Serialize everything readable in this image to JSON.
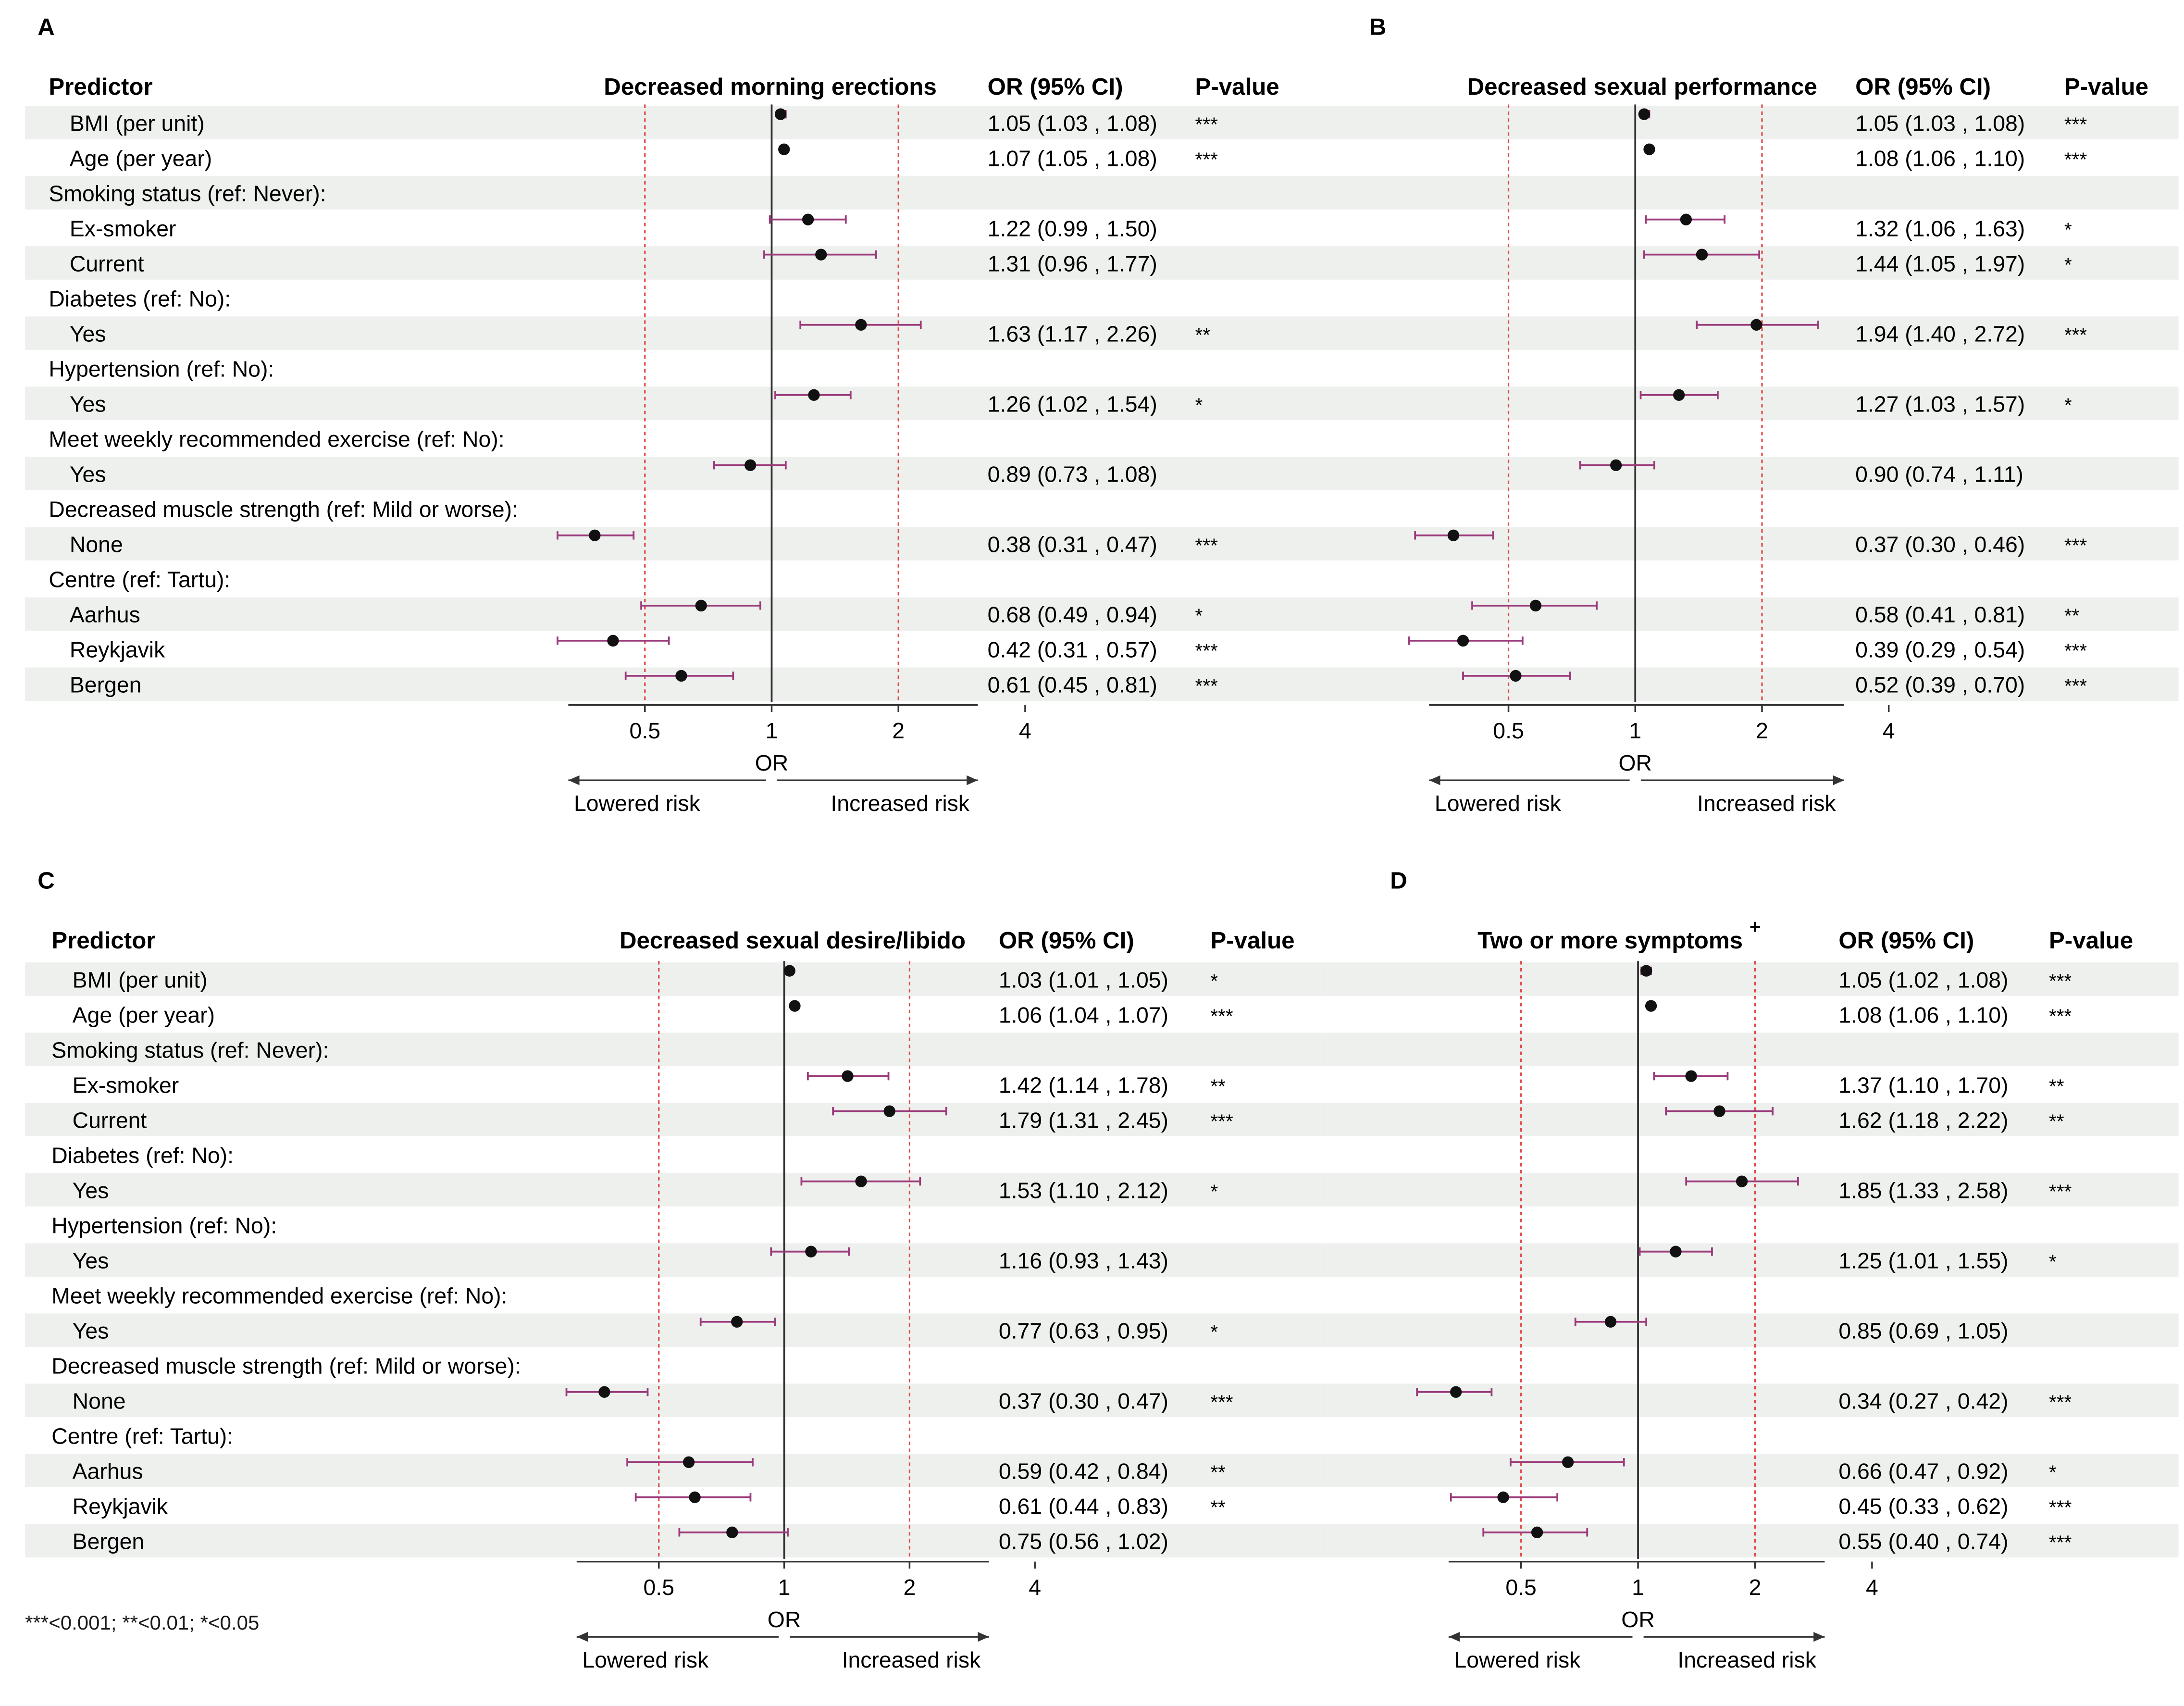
{
  "columns": {
    "predictor": "Predictor",
    "or_ci": "OR (95% CI)",
    "p_value": "P-value"
  },
  "predictors": [
    "BMI (per unit)",
    "Age (per year)",
    "Smoking status (ref: Never):",
    "Ex-smoker",
    "Current",
    "Diabetes (ref: No):",
    "Yes",
    "Hypertension (ref: No):",
    "Yes",
    "Meet weekly recommended exercise (ref: No):",
    "Yes",
    "Decreased muscle strength (ref: Mild or worse):",
    "None",
    "Centre (ref: Tartu):",
    "Aarhus",
    "Reykjavik",
    "Bergen"
  ],
  "axis": {
    "ticks": [
      0.5,
      1,
      2,
      4
    ],
    "tick_labels": [
      "0.5",
      "1",
      "2",
      "4"
    ],
    "label": "OR",
    "left_label": "Lowered risk",
    "right_label": "Increased risk",
    "reference_lines": [
      0.5,
      2
    ]
  },
  "colors": {
    "ci": "#9a3a7a",
    "ref_line": "#e04848",
    "dot": "#111111",
    "row_band": "#eef0ee"
  },
  "footnote": "***<0.001; **<0.01; *<0.05",
  "chart_data": [
    {
      "panel": "A",
      "type": "forest",
      "title": "Decreased morning erections",
      "xscale": "log2",
      "rows": [
        {
          "label": "BMI (per unit)",
          "or": 1.05,
          "lo": 1.03,
          "hi": 1.08,
          "ci_text": "1.05 (1.03 , 1.08)",
          "p": "***"
        },
        {
          "label": "Age (per year)",
          "or": 1.07,
          "lo": 1.05,
          "hi": 1.08,
          "ci_text": "1.07 (1.05 , 1.08)",
          "p": "***"
        },
        {
          "label": "Smoking status (ref: Never):"
        },
        {
          "label": "Ex-smoker",
          "or": 1.22,
          "lo": 0.99,
          "hi": 1.5,
          "ci_text": "1.22 (0.99 , 1.50)",
          "p": ""
        },
        {
          "label": "Current",
          "or": 1.31,
          "lo": 0.96,
          "hi": 1.77,
          "ci_text": "1.31 (0.96 , 1.77)",
          "p": ""
        },
        {
          "label": "Diabetes (ref: No):"
        },
        {
          "label": "Yes",
          "or": 1.63,
          "lo": 1.17,
          "hi": 2.26,
          "ci_text": "1.63 (1.17 , 2.26)",
          "p": "**"
        },
        {
          "label": "Hypertension (ref: No):"
        },
        {
          "label": "Yes",
          "or": 1.26,
          "lo": 1.02,
          "hi": 1.54,
          "ci_text": "1.26 (1.02 , 1.54)",
          "p": "*"
        },
        {
          "label": "Meet weekly recommended exercise (ref: No):"
        },
        {
          "label": "Yes",
          "or": 0.89,
          "lo": 0.73,
          "hi": 1.08,
          "ci_text": "0.89 (0.73 , 1.08)",
          "p": ""
        },
        {
          "label": "Decreased muscle strength (ref: Mild or worse):"
        },
        {
          "label": "None",
          "or": 0.38,
          "lo": 0.31,
          "hi": 0.47,
          "ci_text": "0.38 (0.31 , 0.47)",
          "p": "***"
        },
        {
          "label": "Centre (ref: Tartu):"
        },
        {
          "label": "Aarhus",
          "or": 0.68,
          "lo": 0.49,
          "hi": 0.94,
          "ci_text": "0.68 (0.49 , 0.94)",
          "p": "*"
        },
        {
          "label": "Reykjavik",
          "or": 0.42,
          "lo": 0.31,
          "hi": 0.57,
          "ci_text": "0.42 (0.31 , 0.57)",
          "p": "***"
        },
        {
          "label": "Bergen",
          "or": 0.61,
          "lo": 0.45,
          "hi": 0.81,
          "ci_text": "0.61 (0.45 , 0.81)",
          "p": "***"
        }
      ]
    },
    {
      "panel": "B",
      "type": "forest",
      "title": "Decreased sexual performance",
      "xscale": "log2",
      "rows": [
        {
          "label": "BMI (per unit)",
          "or": 1.05,
          "lo": 1.03,
          "hi": 1.08,
          "ci_text": "1.05 (1.03 , 1.08)",
          "p": "***"
        },
        {
          "label": "Age (per year)",
          "or": 1.08,
          "lo": 1.06,
          "hi": 1.1,
          "ci_text": "1.08 (1.06 , 1.10)",
          "p": "***"
        },
        {
          "label": "Smoking status (ref: Never):"
        },
        {
          "label": "Ex-smoker",
          "or": 1.32,
          "lo": 1.06,
          "hi": 1.63,
          "ci_text": "1.32 (1.06 , 1.63)",
          "p": "*"
        },
        {
          "label": "Current",
          "or": 1.44,
          "lo": 1.05,
          "hi": 1.97,
          "ci_text": "1.44 (1.05 , 1.97)",
          "p": "*"
        },
        {
          "label": "Diabetes (ref: No):"
        },
        {
          "label": "Yes",
          "or": 1.94,
          "lo": 1.4,
          "hi": 2.72,
          "ci_text": "1.94 (1.40 , 2.72)",
          "p": "***"
        },
        {
          "label": "Hypertension (ref: No):"
        },
        {
          "label": "Yes",
          "or": 1.27,
          "lo": 1.03,
          "hi": 1.57,
          "ci_text": "1.27 (1.03 , 1.57)",
          "p": "*"
        },
        {
          "label": "Meet weekly recommended exercise (ref: No):"
        },
        {
          "label": "Yes",
          "or": 0.9,
          "lo": 0.74,
          "hi": 1.11,
          "ci_text": "0.90 (0.74 , 1.11)",
          "p": ""
        },
        {
          "label": "Decreased muscle strength (ref: Mild or worse):"
        },
        {
          "label": "None",
          "or": 0.37,
          "lo": 0.3,
          "hi": 0.46,
          "ci_text": "0.37 (0.30 , 0.46)",
          "p": "***"
        },
        {
          "label": "Centre (ref: Tartu):"
        },
        {
          "label": "Aarhus",
          "or": 0.58,
          "lo": 0.41,
          "hi": 0.81,
          "ci_text": "0.58 (0.41 , 0.81)",
          "p": "**"
        },
        {
          "label": "Reykjavik",
          "or": 0.39,
          "lo": 0.29,
          "hi": 0.54,
          "ci_text": "0.39 (0.29 , 0.54)",
          "p": "***"
        },
        {
          "label": "Bergen",
          "or": 0.52,
          "lo": 0.39,
          "hi": 0.7,
          "ci_text": "0.52 (0.39 , 0.70)",
          "p": "***"
        }
      ]
    },
    {
      "panel": "C",
      "type": "forest",
      "title": "Decreased sexual desire/libido",
      "xscale": "log2",
      "rows": [
        {
          "label": "BMI (per unit)",
          "or": 1.03,
          "lo": 1.01,
          "hi": 1.05,
          "ci_text": "1.03 (1.01 , 1.05)",
          "p": "*"
        },
        {
          "label": "Age (per year)",
          "or": 1.06,
          "lo": 1.04,
          "hi": 1.07,
          "ci_text": "1.06 (1.04 , 1.07)",
          "p": "***"
        },
        {
          "label": "Smoking status (ref: Never):"
        },
        {
          "label": "Ex-smoker",
          "or": 1.42,
          "lo": 1.14,
          "hi": 1.78,
          "ci_text": "1.42 (1.14 , 1.78)",
          "p": "**"
        },
        {
          "label": "Current",
          "or": 1.79,
          "lo": 1.31,
          "hi": 2.45,
          "ci_text": "1.79 (1.31 , 2.45)",
          "p": "***"
        },
        {
          "label": "Diabetes (ref: No):"
        },
        {
          "label": "Yes",
          "or": 1.53,
          "lo": 1.1,
          "hi": 2.12,
          "ci_text": "1.53 (1.10 , 2.12)",
          "p": "*"
        },
        {
          "label": "Hypertension (ref: No):"
        },
        {
          "label": "Yes",
          "or": 1.16,
          "lo": 0.93,
          "hi": 1.43,
          "ci_text": "1.16 (0.93 , 1.43)",
          "p": ""
        },
        {
          "label": "Meet weekly recommended exercise (ref: No):"
        },
        {
          "label": "Yes",
          "or": 0.77,
          "lo": 0.63,
          "hi": 0.95,
          "ci_text": "0.77 (0.63 , 0.95)",
          "p": "*"
        },
        {
          "label": "Decreased muscle strength (ref: Mild or worse):"
        },
        {
          "label": "None",
          "or": 0.37,
          "lo": 0.3,
          "hi": 0.47,
          "ci_text": "0.37 (0.30 , 0.47)",
          "p": "***"
        },
        {
          "label": "Centre (ref: Tartu):"
        },
        {
          "label": "Aarhus",
          "or": 0.59,
          "lo": 0.42,
          "hi": 0.84,
          "ci_text": "0.59 (0.42 , 0.84)",
          "p": "**"
        },
        {
          "label": "Reykjavik",
          "or": 0.61,
          "lo": 0.44,
          "hi": 0.83,
          "ci_text": "0.61 (0.44 , 0.83)",
          "p": "**"
        },
        {
          "label": "Bergen",
          "or": 0.75,
          "lo": 0.56,
          "hi": 1.02,
          "ci_text": "0.75 (0.56 , 1.02)",
          "p": ""
        }
      ]
    },
    {
      "panel": "D",
      "type": "forest",
      "title": "Two or more symptoms",
      "title_mark": "+",
      "xscale": "log2",
      "rows": [
        {
          "label": "BMI (per unit)",
          "or": 1.05,
          "lo": 1.02,
          "hi": 1.08,
          "ci_text": "1.05 (1.02 , 1.08)",
          "p": "***"
        },
        {
          "label": "Age (per year)",
          "or": 1.08,
          "lo": 1.06,
          "hi": 1.1,
          "ci_text": "1.08 (1.06 , 1.10)",
          "p": "***"
        },
        {
          "label": "Smoking status (ref: Never):"
        },
        {
          "label": "Ex-smoker",
          "or": 1.37,
          "lo": 1.1,
          "hi": 1.7,
          "ci_text": "1.37 (1.10 , 1.70)",
          "p": "**"
        },
        {
          "label": "Current",
          "or": 1.62,
          "lo": 1.18,
          "hi": 2.22,
          "ci_text": "1.62 (1.18 , 2.22)",
          "p": "**"
        },
        {
          "label": "Diabetes (ref: No):"
        },
        {
          "label": "Yes",
          "or": 1.85,
          "lo": 1.33,
          "hi": 2.58,
          "ci_text": "1.85 (1.33 , 2.58)",
          "p": "***"
        },
        {
          "label": "Hypertension (ref: No):"
        },
        {
          "label": "Yes",
          "or": 1.25,
          "lo": 1.01,
          "hi": 1.55,
          "ci_text": "1.25 (1.01 , 1.55)",
          "p": "*"
        },
        {
          "label": "Meet weekly recommended exercise (ref: No):"
        },
        {
          "label": "Yes",
          "or": 0.85,
          "lo": 0.69,
          "hi": 1.05,
          "ci_text": "0.85 (0.69 , 1.05)",
          "p": ""
        },
        {
          "label": "Decreased muscle strength (ref: Mild or worse):"
        },
        {
          "label": "None",
          "or": 0.34,
          "lo": 0.27,
          "hi": 0.42,
          "ci_text": "0.34 (0.27 , 0.42)",
          "p": "***"
        },
        {
          "label": "Centre (ref: Tartu):"
        },
        {
          "label": "Aarhus",
          "or": 0.66,
          "lo": 0.47,
          "hi": 0.92,
          "ci_text": "0.66 (0.47 , 0.92)",
          "p": "*"
        },
        {
          "label": "Reykjavik",
          "or": 0.45,
          "lo": 0.33,
          "hi": 0.62,
          "ci_text": "0.45 (0.33 , 0.62)",
          "p": "***"
        },
        {
          "label": "Bergen",
          "or": 0.55,
          "lo": 0.4,
          "hi": 0.74,
          "ci_text": "0.55 (0.40 , 0.74)",
          "p": "***"
        }
      ]
    }
  ]
}
